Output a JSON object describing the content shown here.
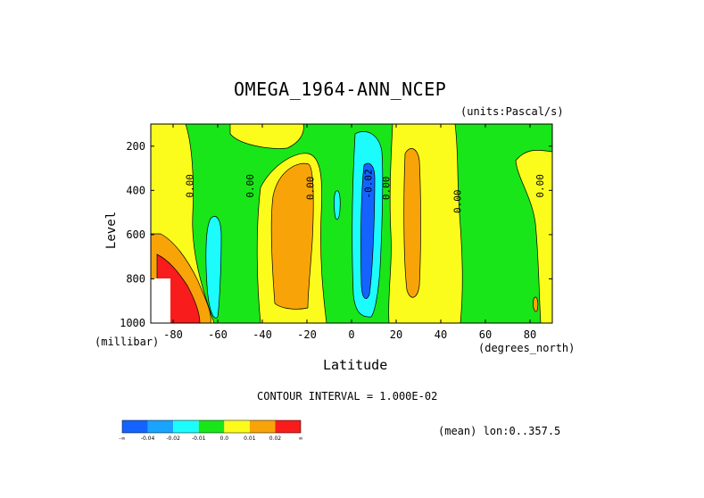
{
  "chart_data": {
    "type": "heatmap",
    "title": "OMEGA_1964-ANN_NCEP",
    "units": "(units:Pascal/s)",
    "xlabel": "Latitude",
    "ylabel": "Level",
    "x_unit": "(degrees_north)",
    "y_unit": "(millibar)",
    "xlim": [
      -90,
      90
    ],
    "ylim": [
      1000,
      100
    ],
    "x_ticks": [
      -80,
      -60,
      -40,
      -20,
      0,
      20,
      40,
      60,
      80
    ],
    "y_ticks": [
      200,
      400,
      600,
      800,
      1000
    ],
    "contour_interval_text": "CONTOUR INTERVAL = 1.000E-02",
    "mean_text": "(mean) lon:0..357.5",
    "contour_labels": [
      {
        "text": "0.00",
        "lat": -71,
        "level": 380
      },
      {
        "text": "0.00",
        "lat": -44,
        "level": 380
      },
      {
        "text": "0.00",
        "lat": -17,
        "level": 390
      },
      {
        "text": "-0.02",
        "lat": 9,
        "level": 370
      },
      {
        "text": "0.00",
        "lat": 17,
        "level": 390
      },
      {
        "text": "0.00",
        "lat": 49,
        "level": 450
      },
      {
        "text": "0.00",
        "lat": 86,
        "level": 380
      }
    ],
    "regions": [
      {
        "band": "0.00 to 0.01",
        "lat": [
          -90,
          -68
        ],
        "level": [
          100,
          1000
        ]
      },
      {
        "band": "-0.01 to 0.00",
        "lat": [
          -68,
          -45
        ],
        "level": [
          100,
          600
        ]
      },
      {
        "band": "0.01 to 0.02",
        "lat": [
          -34,
          -13
        ],
        "level": [
          300,
          820
        ]
      },
      {
        "band": "-0.02 to -0.01",
        "lat": [
          2,
          17
        ],
        "level": [
          150,
          960
        ]
      },
      {
        "band": "-0.03 to -0.02",
        "lat": [
          5,
          11
        ],
        "level": [
          250,
          860
        ]
      },
      {
        "band": "0.01 to 0.02",
        "lat": [
          21,
          30
        ],
        "level": [
          250,
          910
        ]
      },
      {
        "band": "0.02 to max",
        "lat": [
          -90,
          -75
        ],
        "level": [
          600,
          1000
        ]
      }
    ],
    "colorbar": {
      "labels": [
        "-∞",
        "-0.04",
        "-0.02",
        "-0.01",
        "0.0",
        "0.01",
        "0.02",
        "∞"
      ],
      "colors": [
        "#1463ff",
        "#19a4ff",
        "#1cfcfc",
        "#19e619",
        "#fcfc1c",
        "#f8a408",
        "#f81c1c"
      ]
    }
  }
}
